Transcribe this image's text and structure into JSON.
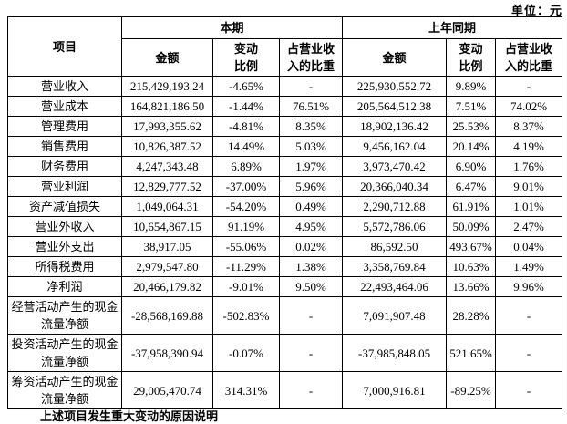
{
  "unit_label": "单位：元",
  "table": {
    "header": {
      "item": "项目",
      "current_period": "本期",
      "prior_period": "上年同期",
      "amount": "金额",
      "change_ratio": "变动\n比例",
      "revenue_share": "占营业收\n入的比重"
    },
    "rows": [
      {
        "label": "营业收入",
        "cur": [
          "215,429,193.24",
          "-4.65%",
          "-"
        ],
        "prior": [
          "225,930,552.72",
          "9.89%",
          "-"
        ]
      },
      {
        "label": "营业成本",
        "cur": [
          "164,821,186.50",
          "-1.44%",
          "76.51%"
        ],
        "prior": [
          "205,564,512.38",
          "7.51%",
          "74.02%"
        ]
      },
      {
        "label": "管理费用",
        "cur": [
          "17,993,355.62",
          "-4.81%",
          "8.35%"
        ],
        "prior": [
          "18,902,136.42",
          "25.53%",
          "8.37%"
        ]
      },
      {
        "label": "销售费用",
        "cur": [
          "10,826,387.52",
          "14.49%",
          "5.03%"
        ],
        "prior": [
          "9,456,162.04",
          "20.14%",
          "4.19%"
        ]
      },
      {
        "label": "财务费用",
        "cur": [
          "4,247,343.48",
          "6.89%",
          "1.97%"
        ],
        "prior": [
          "3,973,470.42",
          "6.90%",
          "1.76%"
        ]
      },
      {
        "label": "营业利润",
        "cur": [
          "12,829,777.52",
          "-37.00%",
          "5.96%"
        ],
        "prior": [
          "20,366,040.34",
          "6.47%",
          "9.01%"
        ]
      },
      {
        "label": "资产减值损失",
        "cur": [
          "1,049,064.31",
          "-54.20%",
          "0.49%"
        ],
        "prior": [
          "2,290,712.88",
          "61.91%",
          "1.01%"
        ]
      },
      {
        "label": "营业外收入",
        "cur": [
          "10,654,867.15",
          "91.19%",
          "4.95%"
        ],
        "prior": [
          "5,572,786.06",
          "50.09%",
          "2.47%"
        ]
      },
      {
        "label": "营业外支出",
        "cur": [
          "38,917.05",
          "-55.06%",
          "0.02%"
        ],
        "prior": [
          "86,592.50",
          "493.67%",
          "0.04%"
        ]
      },
      {
        "label": "所得税费用",
        "cur": [
          "2,979,547.80",
          "-11.29%",
          "1.38%"
        ],
        "prior": [
          "3,358,769.84",
          "10.63%",
          "1.49%"
        ]
      },
      {
        "label": "净利润",
        "cur": [
          "20,466,179.82",
          "-9.01%",
          "9.50%"
        ],
        "prior": [
          "22,493,464.06",
          "13.66%",
          "9.96%"
        ]
      },
      {
        "label": "经营活动产生的现金流量净额",
        "cur": [
          "-28,568,169.88",
          "-502.83%",
          "-"
        ],
        "prior": [
          "7,091,907.48",
          "28.28%",
          "-"
        ]
      },
      {
        "label": "投资活动产生的现金流量净额",
        "cur": [
          "-37,958,390.94",
          "-0.07%",
          "-"
        ],
        "prior": [
          "-37,985,848.05",
          "521.65%",
          "-"
        ]
      },
      {
        "label": "筹资活动产生的现金流量净额",
        "cur": [
          "29,005,470.74",
          "314.31%",
          "-"
        ],
        "prior": [
          "7,000,916.81",
          "-89.25%",
          "-"
        ]
      }
    ]
  },
  "footnote_partial": "上述项目发生重大变动的原因说明"
}
